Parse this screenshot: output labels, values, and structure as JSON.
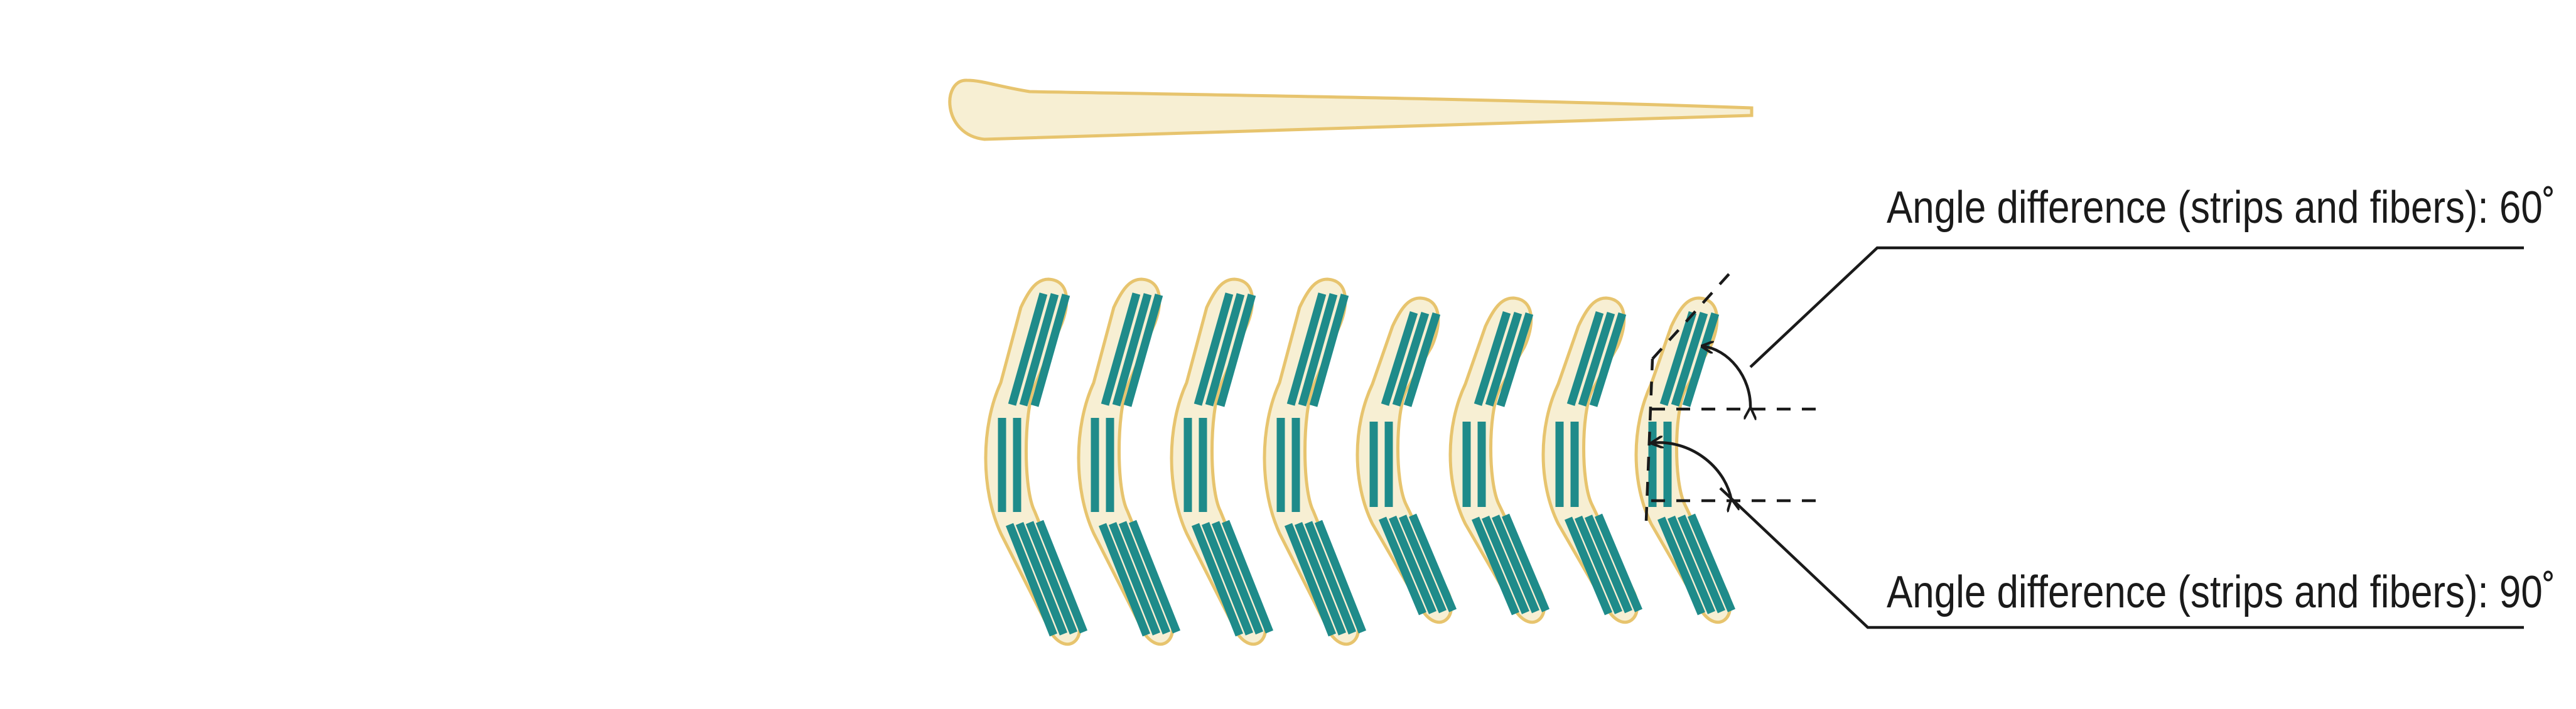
{
  "annotations": {
    "top_label": "Angle difference (strips and fibers): 60˚",
    "bottom_label": "Angle difference (strips and fibers): 90˚"
  },
  "colors": {
    "cup_fill": "#f7efd3",
    "cup_stroke": "#e7c46e",
    "fiber": "#1f8b8a",
    "line": "#1a1a1a"
  }
}
